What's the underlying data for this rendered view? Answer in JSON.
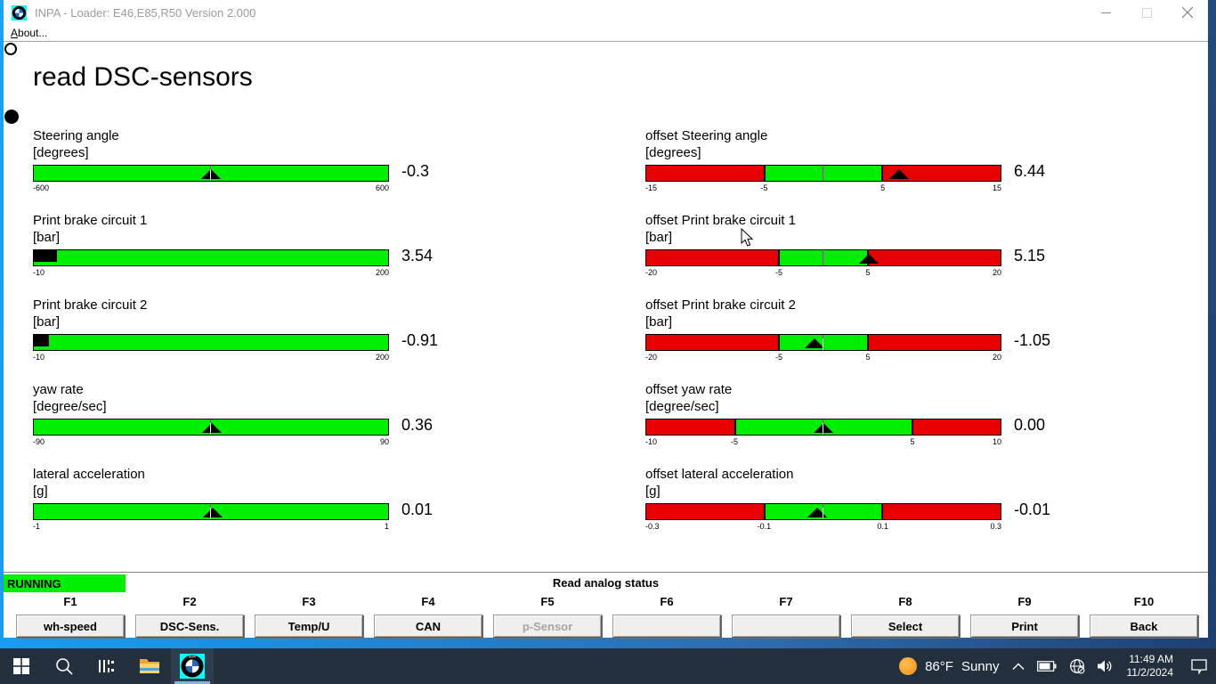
{
  "window": {
    "title": "INPA - Loader:  E46,E85,R50 Version 2.000",
    "menu_label": "About...",
    "controls": {
      "minimize": "minimize-icon",
      "maximize": "maximize-icon",
      "close": "close-icon"
    }
  },
  "page": {
    "heading": "read DSC-sensors"
  },
  "chart_data": {
    "type": "bar",
    "note": "ten horizontal analog gauges",
    "gauges": [
      {
        "label": "Steering angle",
        "unit": "[degrees]",
        "value": -0.3,
        "display": "-0.3",
        "min": -600,
        "max": 600,
        "style": "triangle",
        "zones": null,
        "zero_line": "split",
        "ticks": [
          {
            "v": -600,
            "t": "-600"
          },
          {
            "v": 600,
            "t": "600"
          }
        ]
      },
      {
        "label": "Print brake circuit 1",
        "unit": "[bar]",
        "value": 3.54,
        "display": "3.54",
        "min": -10,
        "max": 200,
        "style": "fill",
        "zones": null,
        "zero_line": "none",
        "ticks": [
          {
            "v": -10,
            "t": "-10"
          },
          {
            "v": 200,
            "t": "200"
          }
        ]
      },
      {
        "label": "Print brake circuit 2",
        "unit": "[bar]",
        "value": -0.91,
        "display": "-0.91",
        "min": -10,
        "max": 200,
        "style": "fill",
        "zones": null,
        "zero_line": "none",
        "ticks": [
          {
            "v": -10,
            "t": "-10"
          },
          {
            "v": 200,
            "t": "200"
          }
        ]
      },
      {
        "label": "yaw rate",
        "unit": "[degree/sec]",
        "value": 0.36,
        "display": "0.36",
        "min": -90,
        "max": 90,
        "style": "triangle",
        "zones": null,
        "zero_line": "split",
        "ticks": [
          {
            "v": -90,
            "t": "-90"
          },
          {
            "v": 90,
            "t": "90"
          }
        ]
      },
      {
        "label": "lateral acceleration",
        "unit": "[g]",
        "value": 0.01,
        "display": "0.01",
        "min": -1,
        "max": 1,
        "style": "triangle",
        "zones": null,
        "zero_line": "split",
        "ticks": [
          {
            "v": -1,
            "t": "-1"
          },
          {
            "v": 1,
            "t": "1"
          }
        ]
      },
      {
        "label": "offset Steering angle",
        "unit": "[degrees]",
        "value": 6.44,
        "display": "6.44",
        "min": -15,
        "max": 15,
        "style": "triangle",
        "zones": {
          "green_from": -5,
          "green_to": 5
        },
        "zero_line": "full",
        "ticks": [
          {
            "v": -15,
            "t": "-15"
          },
          {
            "v": -5,
            "t": "-5"
          },
          {
            "v": 5,
            "t": "5"
          },
          {
            "v": 15,
            "t": "15"
          }
        ]
      },
      {
        "label": "offset Print brake circuit 1",
        "unit": "[bar]",
        "value": 5.15,
        "display": "5.15",
        "min": -20,
        "max": 20,
        "style": "triangle",
        "zones": {
          "green_from": -5,
          "green_to": 5
        },
        "zero_line": "full",
        "ticks": [
          {
            "v": -20,
            "t": "-20"
          },
          {
            "v": -5,
            "t": "-5"
          },
          {
            "v": 5,
            "t": "5"
          },
          {
            "v": 20,
            "t": "20"
          }
        ]
      },
      {
        "label": "offset Print brake circuit 2",
        "unit": "[bar]",
        "value": -1.05,
        "display": "-1.05",
        "min": -20,
        "max": 20,
        "style": "triangle",
        "zones": {
          "green_from": -5,
          "green_to": 5
        },
        "zero_line": "split",
        "ticks": [
          {
            "v": -20,
            "t": "-20"
          },
          {
            "v": -5,
            "t": "-5"
          },
          {
            "v": 5,
            "t": "5"
          },
          {
            "v": 20,
            "t": "20"
          }
        ]
      },
      {
        "label": "offset yaw rate",
        "unit": "[degree/sec]",
        "value": 0.0,
        "display": "0.00",
        "min": -10,
        "max": 10,
        "style": "triangle",
        "zones": {
          "green_from": -5,
          "green_to": 5
        },
        "zero_line": "split",
        "ticks": [
          {
            "v": -10,
            "t": "-10"
          },
          {
            "v": -5,
            "t": "-5"
          },
          {
            "v": 5,
            "t": "5"
          },
          {
            "v": 10,
            "t": "10"
          }
        ]
      },
      {
        "label": "offset lateral acceleration",
        "unit": "[g]",
        "value": -0.01,
        "display": "-0.01",
        "min": -0.3,
        "max": 0.3,
        "style": "triangle",
        "zones": {
          "green_from": -0.1,
          "green_to": 0.1
        },
        "zero_line": "split",
        "ticks": [
          {
            "v": -0.3,
            "t": "-0.3"
          },
          {
            "v": -0.1,
            "t": "-0.1"
          },
          {
            "v": 0.1,
            "t": "0.1"
          },
          {
            "v": 0.3,
            "t": "0.3"
          }
        ]
      }
    ]
  },
  "statusbar": {
    "state": "RUNNING",
    "message": "Read analog status"
  },
  "function_keys": [
    {
      "key": "F1",
      "label": "wh-speed",
      "enabled": true
    },
    {
      "key": "F2",
      "label": "DSC-Sens.",
      "enabled": true
    },
    {
      "key": "F3",
      "label": "Temp/U",
      "enabled": true
    },
    {
      "key": "F4",
      "label": "CAN",
      "enabled": true
    },
    {
      "key": "F5",
      "label": "p-Sensor",
      "enabled": false
    },
    {
      "key": "F6",
      "label": "",
      "enabled": true
    },
    {
      "key": "F7",
      "label": "",
      "enabled": true
    },
    {
      "key": "F8",
      "label": "Select",
      "enabled": true
    },
    {
      "key": "F9",
      "label": "Print",
      "enabled": true
    },
    {
      "key": "F10",
      "label": "Back",
      "enabled": true
    }
  ],
  "taskbar": {
    "items": [
      "start-icon",
      "search-icon",
      "task-view-icon",
      "file-explorer-icon",
      "inpa-bmw-icon"
    ],
    "tray": {
      "weather_temp": "86°F",
      "weather_condition": "Sunny",
      "icons": [
        "chevron-up-icon",
        "battery-icon",
        "network-globe-icon",
        "volume-icon"
      ],
      "time": "11:49 AM",
      "date": "11/2/2024"
    }
  },
  "colors": {
    "gauge_green": "#00ef00",
    "gauge_red": "#e80000",
    "zero_line": "#ff00ff",
    "running_bg": "#00f000",
    "taskbar_bg": "#222f3c",
    "desktop_blue": "#16a3f8",
    "bmw_blue": "#2565c0",
    "inpa_icon_bg": "#00ffff"
  }
}
